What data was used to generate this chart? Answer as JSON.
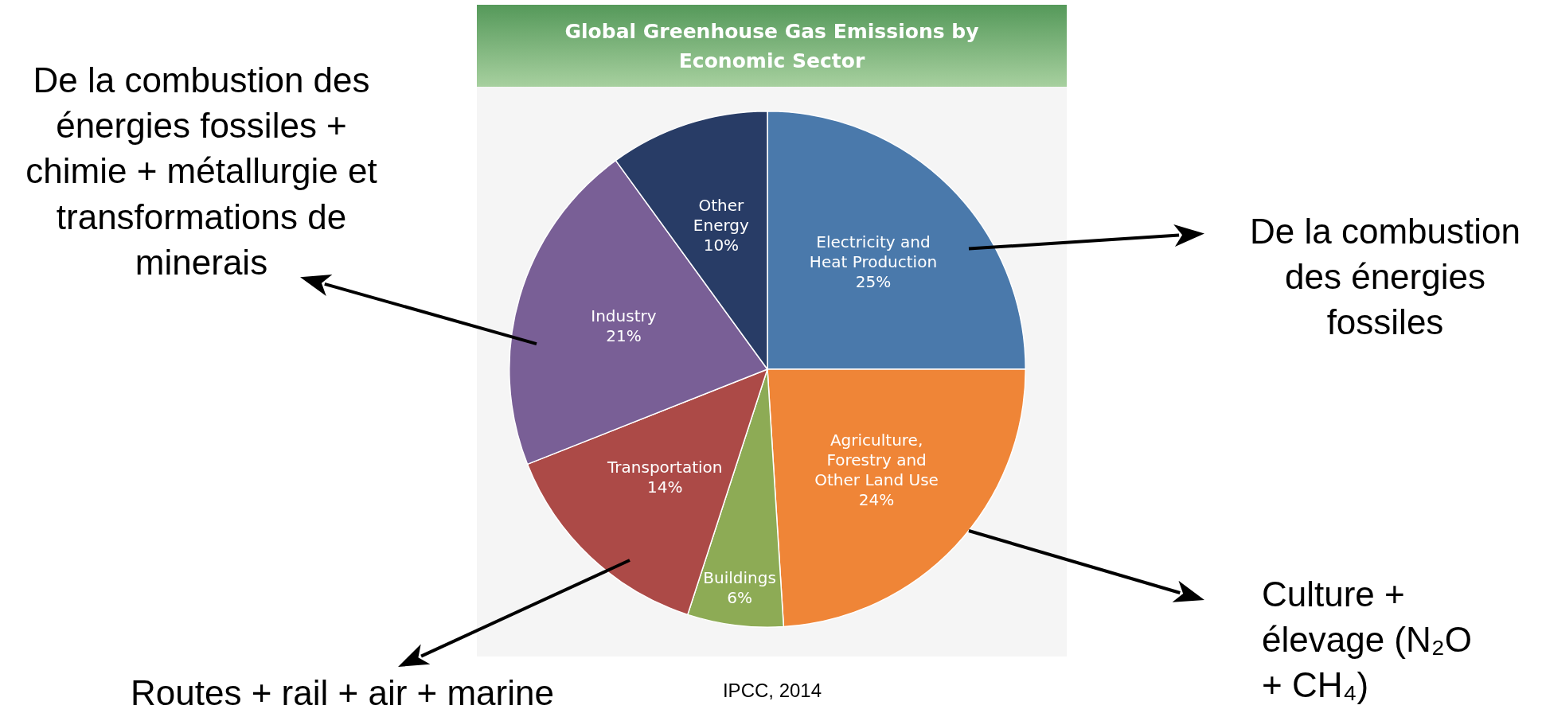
{
  "chart_data": {
    "type": "pie",
    "title": "Global Greenhouse Gas Emissions by Economic Sector",
    "categories": [
      "Electricity and Heat Production",
      "Agriculture, Forestry and Other Land Use",
      "Buildings",
      "Transportation",
      "Industry",
      "Other Energy"
    ],
    "values": [
      25,
      24,
      6,
      14,
      21,
      10
    ],
    "value_labels": [
      "25%",
      "24%",
      "6%",
      "14%",
      "21%",
      "10%"
    ],
    "colors": [
      "#4a79ab",
      "#ef8537",
      "#8dab55",
      "#ac4a47",
      "#795f96",
      "#283c66"
    ],
    "legend": false,
    "annotations": [
      "De la combustion des énergies fossiles + chimie + métallurgie et transformations de minerais",
      "De la combustion des énergies fossiles",
      "Culture + élevage (N₂O + CH₄)",
      "Routes + rail + air + marine",
      "IPCC, 2014"
    ]
  }
}
